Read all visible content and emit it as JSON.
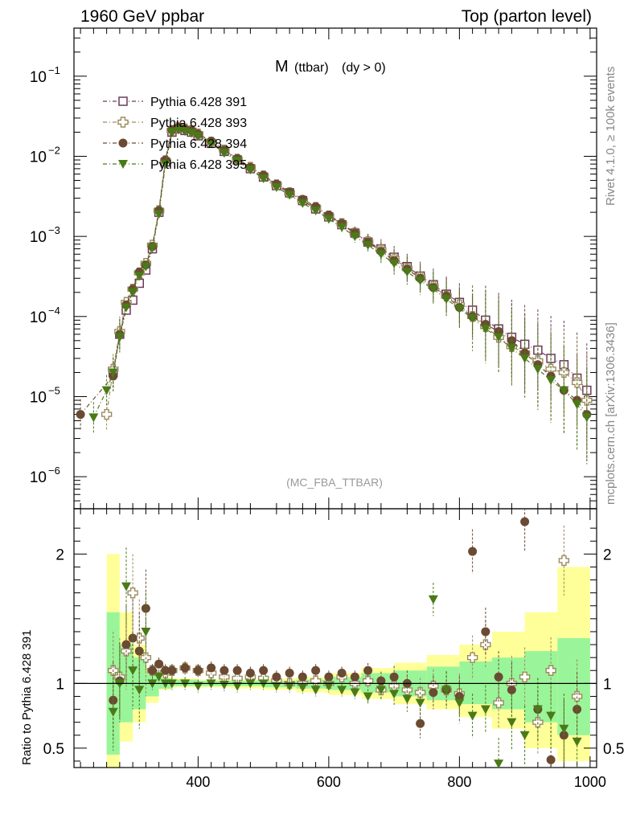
{
  "chart_data": {
    "type": "scatter",
    "header_left": "1960 GeV ppbar",
    "header_right": "Top (parton level)",
    "title_main": "M",
    "title_sub": "(ttbar)",
    "title_tail": "(dy > 0)",
    "analysis_label": "(MC_FBA_TTBAR)",
    "side_label_top": "Rivet 4.1.0, ≥ 100k events",
    "side_label_bottom": "mcplots.cern.ch [arXiv:1306.3436]",
    "ratio_ylabel": "Ratio to Pythia 6.428 391",
    "xlim": [
      210,
      1010
    ],
    "ylim_log10": [
      -6.4,
      -0.4
    ],
    "ratio_ylim": [
      0.35,
      2.35
    ],
    "x_ticks": [
      {
        "value": 400,
        "label": "400"
      },
      {
        "value": 600,
        "label": "600"
      },
      {
        "value": 800,
        "label": "800"
      },
      {
        "value": 1000,
        "label": "1000"
      }
    ],
    "y_ticks": [
      {
        "exp": -1,
        "label_base": "10",
        "label_exp": "−1"
      },
      {
        "exp": -2,
        "label_base": "10",
        "label_exp": "−2"
      },
      {
        "exp": -3,
        "label_base": "10",
        "label_exp": "−3"
      },
      {
        "exp": -4,
        "label_base": "10",
        "label_exp": "−4"
      },
      {
        "exp": -5,
        "label_base": "10",
        "label_exp": "−5"
      },
      {
        "exp": -6,
        "label_base": "10",
        "label_exp": "−6"
      }
    ],
    "ratio_ticks": [
      {
        "value": 2,
        "label": "2"
      },
      {
        "value": 1,
        "label": "1"
      },
      {
        "value": 0.5,
        "label": "0.5"
      }
    ],
    "series": [
      {
        "name": "Pythia 6.428 391",
        "color": "#6b3a58",
        "marker": "open-square",
        "x": [
          270,
          280,
          290,
          300,
          310,
          320,
          330,
          340,
          350,
          360,
          370,
          380,
          390,
          400,
          420,
          440,
          460,
          480,
          500,
          520,
          540,
          560,
          580,
          600,
          620,
          640,
          660,
          680,
          700,
          720,
          740,
          760,
          780,
          800,
          820,
          840,
          860,
          880,
          900,
          920,
          940,
          960,
          980,
          995
        ],
        "y": [
          2e-05,
          6e-05,
          0.00012,
          0.00016,
          0.00026,
          0.00038,
          0.0007,
          0.002,
          0.0085,
          0.02,
          0.022,
          0.021,
          0.02,
          0.018,
          0.0145,
          0.0115,
          0.009,
          0.007,
          0.0055,
          0.0043,
          0.0035,
          0.0028,
          0.0022,
          0.00175,
          0.0014,
          0.0011,
          0.00085,
          0.0007,
          0.00055,
          0.00042,
          0.00032,
          0.00025,
          0.00019,
          0.00015,
          0.00012,
          9e-05,
          7e-05,
          5.5e-05,
          4.5e-05,
          3.8e-05,
          3e-05,
          2.5e-05,
          1.7e-05,
          1.2e-05
        ]
      },
      {
        "name": "Pythia 6.428 393",
        "color": "#9c8a5c",
        "marker": "open-cross",
        "x": [
          260,
          270,
          280,
          290,
          300,
          310,
          320,
          330,
          340,
          350,
          360,
          370,
          380,
          390,
          400,
          420,
          440,
          460,
          480,
          500,
          520,
          540,
          560,
          580,
          600,
          620,
          640,
          660,
          680,
          700,
          720,
          740,
          760,
          780,
          800,
          820,
          840,
          860,
          880,
          900,
          920,
          940,
          960,
          980,
          995
        ],
        "y": [
          6e-06,
          2.2e-05,
          6.5e-05,
          0.00015,
          0.00022,
          0.00035,
          0.00046,
          0.00078,
          0.0021,
          0.0088,
          0.021,
          0.023,
          0.022,
          0.021,
          0.019,
          0.015,
          0.012,
          0.0092,
          0.0073,
          0.0057,
          0.0044,
          0.0035,
          0.0028,
          0.0023,
          0.0018,
          0.00145,
          0.0011,
          0.00086,
          0.00068,
          0.00053,
          0.0004,
          0.00031,
          0.00024,
          0.00018,
          0.00014,
          0.0001,
          7.5e-05,
          5.5e-05,
          4.2e-05,
          3.5e-05,
          2.8e-05,
          2.2e-05,
          2e-05,
          1.5e-05,
          9e-06
        ]
      },
      {
        "name": "Pythia 6.428 394",
        "color": "#6b4a33",
        "marker": "filled-circle",
        "x": [
          220,
          270,
          280,
          290,
          300,
          310,
          320,
          330,
          340,
          350,
          360,
          370,
          380,
          390,
          400,
          420,
          440,
          460,
          480,
          500,
          520,
          540,
          560,
          580,
          600,
          620,
          640,
          660,
          680,
          700,
          720,
          740,
          760,
          780,
          800,
          820,
          840,
          860,
          880,
          900,
          920,
          940,
          960,
          980,
          995
        ],
        "y": [
          6e-06,
          1.8e-05,
          6e-05,
          0.00014,
          0.00022,
          0.00036,
          0.00044,
          0.00075,
          0.0021,
          0.009,
          0.0215,
          0.023,
          0.022,
          0.021,
          0.019,
          0.0155,
          0.012,
          0.0094,
          0.0073,
          0.0058,
          0.0045,
          0.0036,
          0.0029,
          0.00235,
          0.00185,
          0.00145,
          0.0011,
          0.00085,
          0.00065,
          0.0005,
          0.00039,
          0.0003,
          0.00023,
          0.00018,
          0.00013,
          0.0001,
          8e-05,
          6.5e-05,
          5e-05,
          3.5e-05,
          2.5e-05,
          1.8e-05,
          1.2e-05,
          9e-06,
          6e-06
        ]
      },
      {
        "name": "Pythia 6.428 395",
        "color": "#4a7a18",
        "marker": "filled-triangle-down",
        "x": [
          240,
          260,
          270,
          280,
          290,
          300,
          310,
          320,
          330,
          340,
          350,
          360,
          370,
          380,
          390,
          400,
          420,
          440,
          460,
          480,
          500,
          520,
          540,
          560,
          580,
          600,
          620,
          640,
          660,
          680,
          700,
          720,
          740,
          760,
          780,
          800,
          820,
          840,
          860,
          880,
          900,
          920,
          940,
          960,
          980,
          995
        ],
        "y": [
          5.5e-06,
          1.2e-05,
          2e-05,
          5.5e-05,
          0.00013,
          0.0002,
          0.00032,
          0.00042,
          0.00072,
          0.0019,
          0.008,
          0.02,
          0.0215,
          0.0205,
          0.0195,
          0.018,
          0.0145,
          0.011,
          0.0088,
          0.0068,
          0.0053,
          0.0041,
          0.0033,
          0.0026,
          0.0021,
          0.00165,
          0.0013,
          0.001,
          0.00078,
          0.0006,
          0.00046,
          0.00036,
          0.00028,
          0.00022,
          0.000165,
          0.000125,
          9.5e-05,
          7e-05,
          5.5e-05,
          4e-05,
          3e-05,
          2.2e-05,
          1.6e-05,
          1.2e-05,
          8e-06,
          5.5e-06
        ]
      }
    ],
    "ratio_series": [
      {
        "name": "Pythia 6.428 393",
        "x": [
          270,
          280,
          290,
          300,
          310,
          320,
          330,
          340,
          350,
          360,
          380,
          400,
          420,
          440,
          460,
          480,
          500,
          520,
          540,
          560,
          580,
          600,
          620,
          640,
          660,
          680,
          700,
          720,
          740,
          760,
          780,
          800,
          820,
          840,
          860,
          880,
          900,
          920,
          940,
          960,
          980
        ],
        "y": [
          1.1,
          1.05,
          1.25,
          1.7,
          1.35,
          1.2,
          1.1,
          1.12,
          1.08,
          1.1,
          1.12,
          1.1,
          1.08,
          1.05,
          1.04,
          1.05,
          1.04,
          1.02,
          1.0,
          1.0,
          1.02,
          1.0,
          1.05,
          1.0,
          1.02,
          0.95,
          0.98,
          0.95,
          0.93,
          0.98,
          0.95,
          0.92,
          1.2,
          1.3,
          0.85,
          1.0,
          1.05,
          0.7,
          1.1,
          1.95,
          0.9
        ]
      },
      {
        "name": "Pythia 6.428 394",
        "x": [
          270,
          280,
          290,
          300,
          310,
          320,
          330,
          340,
          350,
          360,
          380,
          400,
          420,
          440,
          460,
          480,
          500,
          520,
          540,
          560,
          580,
          600,
          620,
          640,
          660,
          680,
          700,
          720,
          740,
          760,
          780,
          800,
          820,
          840,
          860,
          880,
          900,
          920,
          940,
          960,
          980
        ],
        "y": [
          0.87,
          1.02,
          1.3,
          1.35,
          1.25,
          1.58,
          1.1,
          1.15,
          1.1,
          1.1,
          1.12,
          1.1,
          1.12,
          1.1,
          1.1,
          1.08,
          1.1,
          1.05,
          1.08,
          1.05,
          1.1,
          1.05,
          1.08,
          1.05,
          1.1,
          1.02,
          1.05,
          1.0,
          0.69,
          0.93,
          0.95,
          0.9,
          2.02,
          1.4,
          1.05,
          0.95,
          2.25,
          0.8,
          0.41,
          0.6,
          0.8
        ]
      },
      {
        "name": "Pythia 6.428 395",
        "x": [
          270,
          280,
          290,
          300,
          310,
          320,
          330,
          340,
          350,
          360,
          380,
          400,
          420,
          440,
          460,
          480,
          500,
          520,
          540,
          560,
          580,
          600,
          620,
          640,
          660,
          680,
          700,
          720,
          740,
          760,
          780,
          800,
          820,
          840,
          860,
          880,
          900,
          920,
          940,
          960,
          980
        ],
        "y": [
          0.78,
          1.0,
          1.75,
          1.1,
          0.95,
          1.4,
          1.0,
          1.05,
          1.0,
          1.0,
          1.0,
          0.98,
          1.0,
          0.99,
          0.98,
          1.0,
          1.0,
          0.98,
          0.98,
          0.97,
          0.95,
          0.98,
          0.95,
          0.93,
          0.9,
          0.95,
          0.92,
          0.88,
          0.85,
          1.65,
          0.95,
          0.85,
          0.75,
          0.8,
          0.38,
          0.7,
          0.6,
          0.8,
          0.75,
          0.65,
          0.55
        ]
      }
    ],
    "uncertainty_band": {
      "x_edges": [
        260,
        280,
        300,
        320,
        340,
        360,
        400,
        450,
        500,
        550,
        600,
        650,
        700,
        750,
        800,
        850,
        900,
        950,
        1000
      ],
      "inner_lo": [
        0.45,
        0.7,
        0.8,
        0.9,
        0.96,
        0.98,
        0.98,
        0.98,
        0.97,
        0.96,
        0.95,
        0.93,
        0.9,
        0.87,
        0.84,
        0.8,
        0.7,
        0.6,
        0.4
      ],
      "inner_hi": [
        1.55,
        1.3,
        1.2,
        1.08,
        1.04,
        1.03,
        1.02,
        1.02,
        1.02,
        1.03,
        1.05,
        1.08,
        1.1,
        1.13,
        1.17,
        1.2,
        1.25,
        1.35,
        1.6
      ],
      "outer_lo": [
        0.35,
        0.55,
        0.7,
        0.85,
        0.95,
        0.97,
        0.97,
        0.96,
        0.95,
        0.93,
        0.91,
        0.88,
        0.84,
        0.8,
        0.74,
        0.65,
        0.5,
        0.4,
        0.35
      ],
      "outer_hi": [
        2.0,
        1.55,
        1.3,
        1.12,
        1.05,
        1.04,
        1.03,
        1.03,
        1.04,
        1.05,
        1.08,
        1.12,
        1.16,
        1.22,
        1.3,
        1.4,
        1.55,
        1.9,
        2.3
      ],
      "inner_color": "#9af59a",
      "outer_color": "#ffff99"
    }
  }
}
